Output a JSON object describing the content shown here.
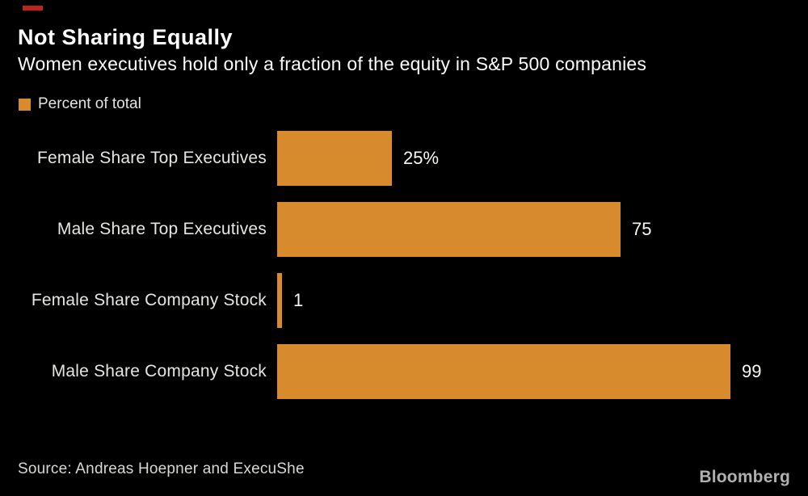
{
  "header": {
    "title": "Not Sharing Equally",
    "subtitle": "Women executives hold only a fraction of the equity in S&P 500 companies"
  },
  "legend": {
    "label": "Percent of total",
    "swatch_color": "#d88b2c"
  },
  "chart_data": {
    "type": "bar",
    "orientation": "horizontal",
    "title": "Not Sharing Equally",
    "subtitle": "Women executives hold only a fraction of the equity in S&P 500 companies",
    "series_name": "Percent of total",
    "categories": [
      "Female Share Top Executives",
      "Male Share Top Executives",
      "Female Share Company Stock",
      "Male Share Company Stock"
    ],
    "values": [
      25,
      75,
      1,
      99
    ],
    "value_labels": [
      "25%",
      "75",
      "1",
      "99"
    ],
    "xlim": [
      0,
      100
    ],
    "grid": false,
    "legend_position": "top-left",
    "bar_color": "#d88b2c",
    "rows": [
      {
        "label": "Female Share Top Executives",
        "value": 25,
        "value_label": "25%"
      },
      {
        "label": "Male Share Top Executives",
        "value": 75,
        "value_label": "75"
      },
      {
        "label": "Female Share Company Stock",
        "value": 1,
        "value_label": "1"
      },
      {
        "label": "Male Share Company Stock",
        "value": 99,
        "value_label": "99"
      }
    ]
  },
  "footer": {
    "source": "Source: Andreas Hoepner and ExecuShe",
    "brand": "Bloomberg"
  },
  "colors": {
    "background": "#000000",
    "bar": "#d88b2c",
    "accent_red": "#c0231d",
    "title_text": "#ffffff",
    "label_text": "#e6e6e3",
    "brand_text": "#b0b0b0"
  }
}
